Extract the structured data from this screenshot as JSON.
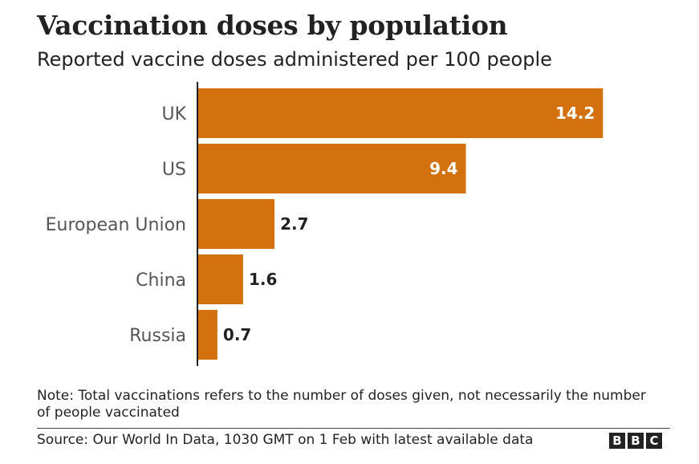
{
  "header": {
    "title": "Vaccination doses by population",
    "subtitle": "Reported vaccine doses administered per 100 people"
  },
  "chart_data": {
    "type": "bar",
    "orientation": "horizontal",
    "title": "Vaccination doses by population",
    "subtitle": "Reported vaccine doses administered per 100 people",
    "categories": [
      "UK",
      "US",
      "European Union",
      "China",
      "Russia"
    ],
    "values": [
      14.2,
      9.4,
      2.7,
      1.6,
      0.7
    ],
    "value_labels": [
      "14.2",
      "9.4",
      "2.7",
      "1.6",
      "0.7"
    ],
    "xlabel": "",
    "ylabel": "",
    "xlim": [
      0,
      14.5
    ],
    "grid": false,
    "bar_color": "#d4710f"
  },
  "footer": {
    "note": "Note: Total vaccinations refers to the number of doses given, not necessarily the number of people vaccinated",
    "source": "Source: Our World In Data, 1030 GMT on 1 Feb with latest available data",
    "logo_letters": [
      "B",
      "B",
      "C"
    ]
  }
}
